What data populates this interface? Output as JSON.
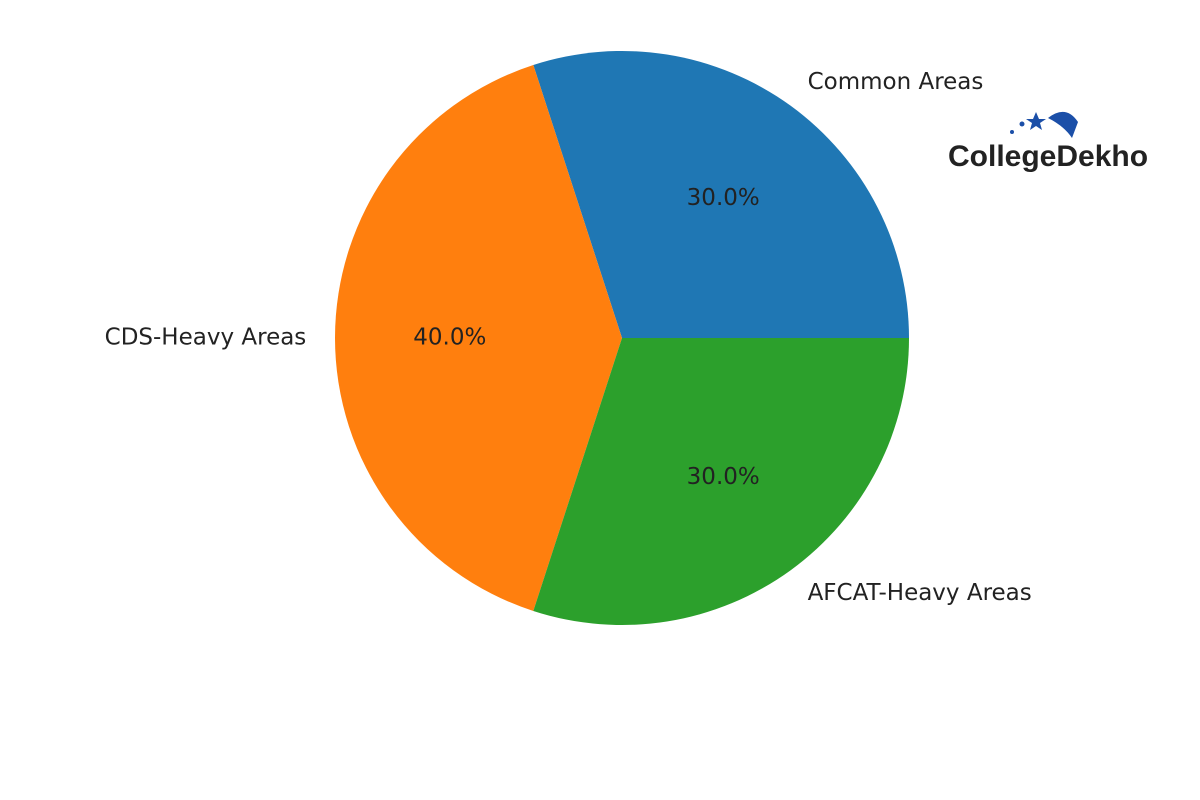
{
  "chart_data": {
    "type": "pie",
    "categories": [
      "Common Areas",
      "CDS-Heavy Areas",
      "AFCAT-Heavy Areas"
    ],
    "values": [
      30,
      40,
      30
    ],
    "value_labels": [
      "30.0%",
      "40.0%",
      "30.0%"
    ],
    "colors": [
      "#1f77b4",
      "#ff7f0e",
      "#2ca02c"
    ],
    "watermark": "CollegeDekho"
  }
}
